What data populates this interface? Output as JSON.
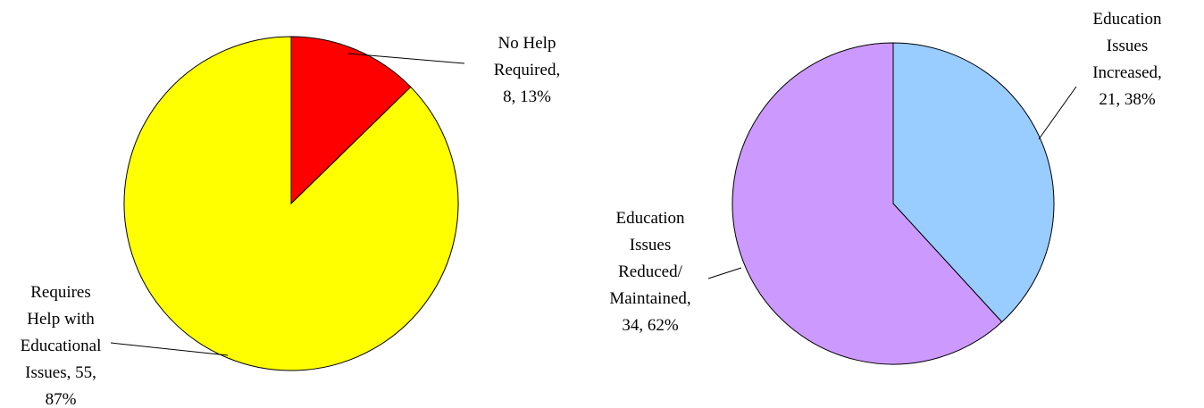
{
  "chart_data": [
    {
      "type": "pie",
      "title": "",
      "slices": [
        {
          "label": [
            "No Help",
            "Required,",
            "8, 13%"
          ],
          "value": 8,
          "percent": 13,
          "color": "#FF0000"
        },
        {
          "label": [
            "Requires",
            "Help with",
            "Educational",
            "Issues, 55,",
            "87%"
          ],
          "value": 55,
          "percent": 87,
          "color": "#FFFF00"
        }
      ]
    },
    {
      "type": "pie",
      "title": "",
      "slices": [
        {
          "label": [
            "Education",
            "Issues",
            "Increased,",
            "21, 38%"
          ],
          "value": 21,
          "percent": 38,
          "color": "#99CCFF"
        },
        {
          "label": [
            "Education",
            "Issues",
            "Reduced/",
            "Maintained,",
            "34, 62%"
          ],
          "value": 34,
          "percent": 62,
          "color": "#CC99FF"
        }
      ]
    }
  ]
}
